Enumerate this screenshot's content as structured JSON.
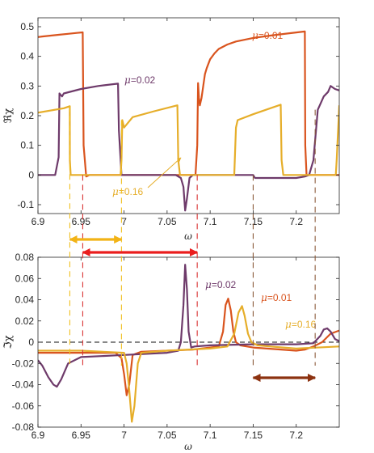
{
  "colors": {
    "mu_0_01": "#d9541e",
    "mu_0_02": "#6e3a6a",
    "mu_0_16": "#e6ae2a",
    "mu_0_16_fill": "#f2b316",
    "red_arrow": "#ea1d1d",
    "brown_arrow": "#8c3210",
    "red_dash": "#d93434",
    "yellow_dash": "#f0c020",
    "brown_dash": "#8b5a3a",
    "black_dash": "#111111"
  },
  "chart_data": [
    {
      "type": "line",
      "panel": "top",
      "xlabel": "ω",
      "ylabel": "ℜχ",
      "xlim": [
        6.9,
        7.25
      ],
      "ylim": [
        -0.13,
        0.53
      ],
      "xticks": [
        "6.9",
        "6.95",
        "7",
        "7.05",
        "7.1",
        "7.15",
        "7.2"
      ],
      "yticks": [
        "-0.1",
        "0",
        "0.1",
        "0.2",
        "0.3",
        "0.4",
        "0.5"
      ],
      "grid": false,
      "annotations": [
        {
          "key": "mu001",
          "mu": "μ",
          "text": "=0.01"
        },
        {
          "key": "mu002",
          "mu": "μ",
          "text": "=0.02"
        },
        {
          "key": "mu016",
          "mu": "μ",
          "text": "=0.16"
        }
      ],
      "series": [
        {
          "name": "μ=0.01",
          "color_key": "mu_0_01",
          "x": [
            6.9,
            6.905,
            6.915,
            6.925,
            6.935,
            6.945,
            6.952,
            6.953,
            6.956,
            6.96,
            7.0,
            7.05,
            7.083,
            7.085,
            7.086,
            7.087,
            7.088,
            7.09,
            7.092,
            7.094,
            7.096,
            7.1,
            7.105,
            7.11,
            7.12,
            7.13,
            7.15,
            7.17,
            7.19,
            7.21,
            7.2105,
            7.212,
            7.215,
            7.25
          ],
          "y": [
            0.465,
            0.467,
            0.47,
            0.473,
            0.476,
            0.479,
            0.481,
            0.1,
            -0.005,
            0,
            0,
            0,
            0,
            0.1,
            0.31,
            0.26,
            0.235,
            0.26,
            0.3,
            0.34,
            0.36,
            0.39,
            0.41,
            0.425,
            0.44,
            0.45,
            0.462,
            0.47,
            0.477,
            0.484,
            0.1,
            0,
            0,
            0
          ]
        },
        {
          "name": "μ=0.02",
          "color_key": "mu_0_02",
          "x": [
            6.9,
            6.91,
            6.92,
            6.924,
            6.925,
            6.928,
            6.93,
            6.95,
            6.97,
            6.993,
            6.994,
            6.997,
            7.0,
            7.06,
            7.066,
            7.069,
            7.071,
            7.073,
            7.076,
            7.08,
            7.1,
            7.13,
            7.15,
            7.152,
            7.2,
            7.21,
            7.215,
            7.22,
            7.225,
            7.232,
            7.237,
            7.24,
            7.245,
            7.25
          ],
          "y": [
            0,
            0,
            0,
            0.06,
            0.275,
            0.265,
            0.275,
            0.29,
            0.3,
            0.308,
            0.15,
            0.0,
            0,
            0,
            -0.01,
            -0.04,
            -0.12,
            -0.08,
            -0.01,
            0,
            0,
            0,
            0,
            -0.01,
            -0.01,
            -0.005,
            0.0,
            0.05,
            0.22,
            0.265,
            0.28,
            0.3,
            0.29,
            0.285
          ]
        },
        {
          "name": "μ=0.16",
          "color_key": "mu_0_16",
          "x": [
            6.9,
            6.93,
            6.937,
            6.9371,
            6.938,
            6.95,
            6.98,
            6.996,
            6.997,
            6.998,
            7.0,
            7.01,
            7.035,
            7.062,
            7.063,
            7.065,
            7.07,
            7.1,
            7.12,
            7.128,
            7.13,
            7.132,
            7.15,
            7.17,
            7.182,
            7.183,
            7.185,
            7.2,
            7.246,
            7.247,
            7.25
          ],
          "y": [
            0.21,
            0.225,
            0.232,
            0.05,
            0.0,
            0,
            0,
            0,
            0.05,
            0.185,
            0.16,
            0.195,
            0.215,
            0.235,
            0.05,
            0.0,
            0,
            0,
            0,
            0,
            0.16,
            0.185,
            0.205,
            0.225,
            0.237,
            0.05,
            0,
            0,
            0,
            0.05,
            0.235
          ]
        }
      ]
    },
    {
      "type": "line",
      "panel": "bottom",
      "xlabel": "ω",
      "ylabel": "ℑχ",
      "xlim": [
        6.9,
        7.25
      ],
      "ylim": [
        -0.08,
        0.08
      ],
      "xticks": [
        "6.9",
        "6.95",
        "7",
        "7.05",
        "7.1",
        "7.15",
        "7.2"
      ],
      "yticks": [
        "-0.08",
        "-0.06",
        "-0.04",
        "-0.02",
        "0",
        "0.02",
        "0.04",
        "0.06",
        "0.08"
      ],
      "grid": false,
      "annotations": [
        {
          "key": "mu002",
          "mu": "μ",
          "text": "=0.02"
        },
        {
          "key": "mu001",
          "mu": "μ",
          "text": "=0.01"
        },
        {
          "key": "mu016",
          "mu": "μ",
          "text": "=0.16"
        }
      ],
      "series": [
        {
          "name": "μ=0.01",
          "color_key": "mu_0_01",
          "x": [
            6.9,
            6.95,
            6.99,
            6.997,
            7.0,
            7.003,
            7.006,
            7.01,
            7.02,
            7.05,
            7.08,
            7.09,
            7.1,
            7.11,
            7.115,
            7.118,
            7.121,
            7.124,
            7.127,
            7.13,
            7.135,
            7.15,
            7.2,
            7.21,
            7.22,
            7.23,
            7.24,
            7.25
          ],
          "y": [
            -0.01,
            -0.01,
            -0.01,
            -0.015,
            -0.03,
            -0.05,
            -0.04,
            -0.012,
            -0.009,
            -0.008,
            -0.007,
            -0.006,
            -0.005,
            -0.004,
            0.01,
            0.035,
            0.041,
            0.03,
            0.01,
            0.0,
            -0.003,
            -0.005,
            -0.008,
            -0.007,
            -0.004,
            0.0,
            0.008,
            0.011
          ]
        },
        {
          "name": "μ=0.02",
          "color_key": "mu_0_02",
          "x": [
            6.9,
            6.905,
            6.912,
            6.918,
            6.922,
            6.927,
            6.935,
            6.95,
            7.0,
            7.05,
            7.063,
            7.066,
            7.069,
            7.071,
            7.073,
            7.075,
            7.078,
            7.082,
            7.1,
            7.15,
            7.2,
            7.22,
            7.228,
            7.232,
            7.236,
            7.24,
            7.245,
            7.25
          ],
          "y": [
            -0.017,
            -0.022,
            -0.033,
            -0.04,
            -0.042,
            -0.035,
            -0.02,
            -0.014,
            -0.012,
            -0.01,
            -0.008,
            0.0,
            0.035,
            0.073,
            0.05,
            0.01,
            -0.005,
            -0.004,
            -0.003,
            -0.002,
            -0.002,
            -0.001,
            0.006,
            0.012,
            0.013,
            0.01,
            0.003,
            0.001
          ]
        },
        {
          "name": "μ=0.16",
          "color_key": "mu_0_16",
          "x": [
            6.9,
            6.95,
            7.0,
            7.003,
            7.006,
            7.009,
            7.012,
            7.016,
            7.02,
            7.05,
            7.1,
            7.12,
            7.128,
            7.133,
            7.137,
            7.14,
            7.144,
            7.148,
            7.155,
            7.17,
            7.2,
            7.25
          ],
          "y": [
            -0.008,
            -0.008,
            -0.01,
            -0.02,
            -0.045,
            -0.075,
            -0.06,
            -0.02,
            -0.01,
            -0.008,
            -0.006,
            -0.004,
            0.008,
            0.028,
            0.034,
            0.025,
            0.008,
            0.0,
            -0.003,
            -0.004,
            -0.006,
            -0.004
          ]
        }
      ]
    }
  ]
}
